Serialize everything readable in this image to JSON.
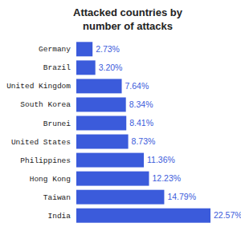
{
  "chart_data": {
    "type": "bar",
    "title": "Attacked countries by number of attacks",
    "categories": [
      "Germany",
      "Brazil",
      "United Kingdom",
      "South Korea",
      "Brunei",
      "United States",
      "Philippines",
      "Hong Kong",
      "Taiwan",
      "India"
    ],
    "values": [
      2.73,
      3.2,
      7.64,
      8.34,
      8.41,
      8.73,
      11.36,
      12.23,
      14.79,
      22.57
    ],
    "value_labels": [
      "2.73%",
      "3.20%",
      "7.64%",
      "8.34%",
      "8.41%",
      "8.73%",
      "11.36%",
      "12.23%",
      "14.79%",
      "22.57%"
    ],
    "color": "#3b5bdb",
    "orientation": "horizontal",
    "data_labels": true,
    "tick_labels": "y"
  }
}
